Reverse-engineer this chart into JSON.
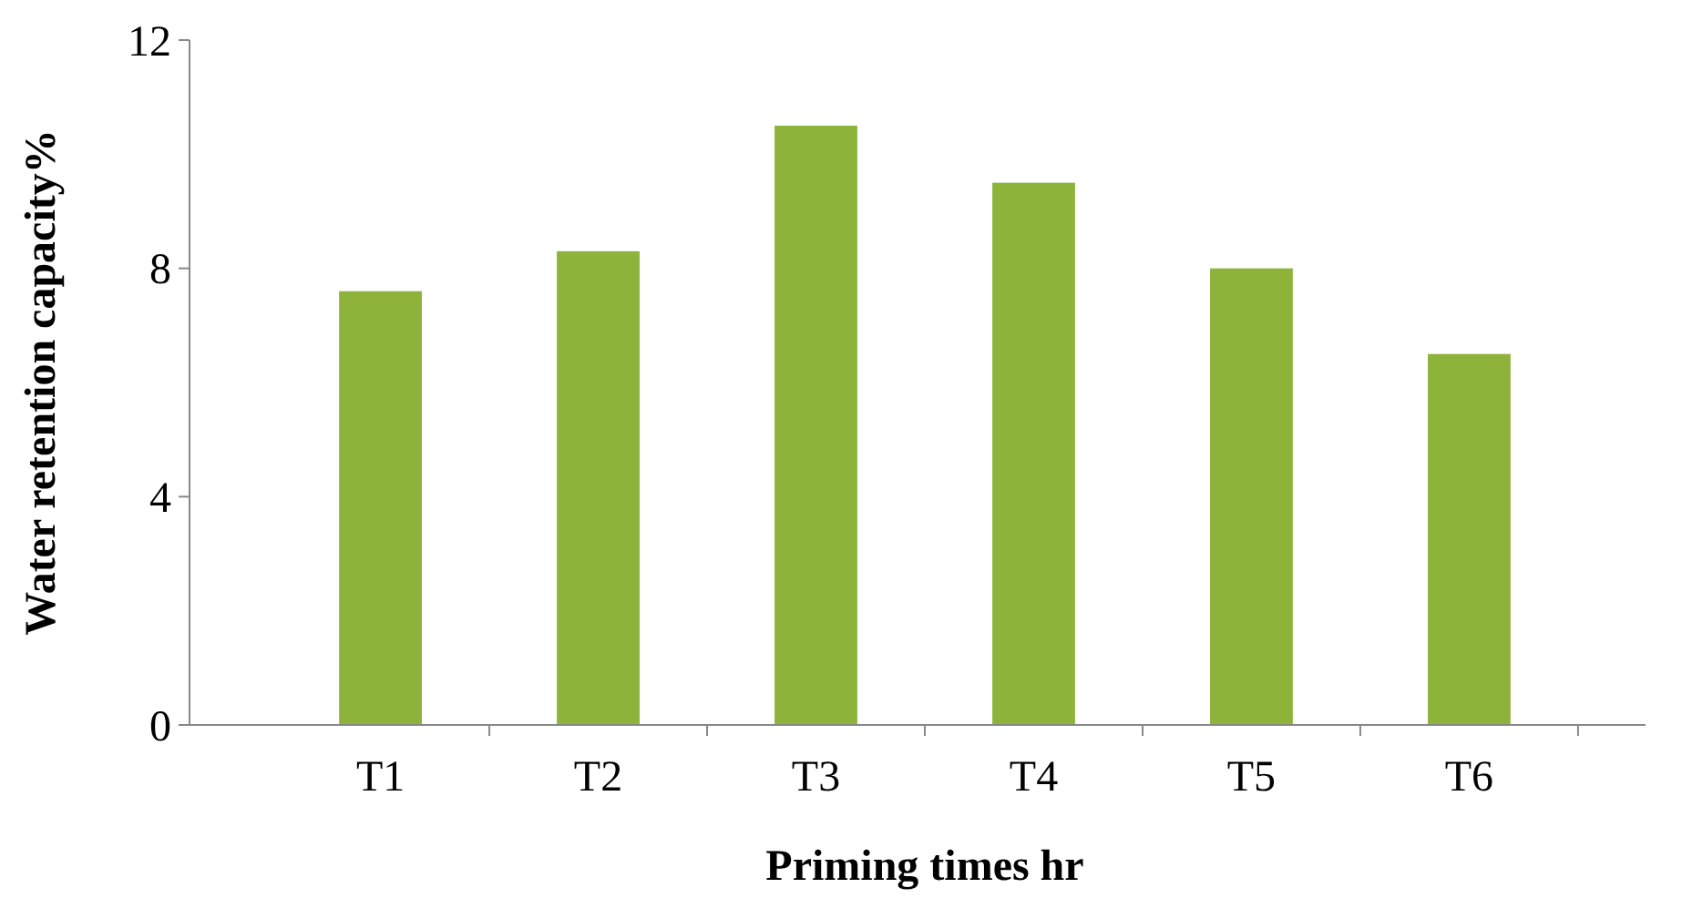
{
  "chart_data": {
    "type": "bar",
    "xlabel": "Priming times hr",
    "ylabel": "Water retention capacity%",
    "categories": [
      "T1",
      "T2",
      "T3",
      "T4",
      "T5",
      "T6"
    ],
    "values": [
      7.6,
      8.3,
      10.5,
      9.5,
      8.0,
      6.5
    ],
    "color": "#8db33a",
    "ylim": [
      0,
      12
    ],
    "yticks": [
      0,
      4,
      8,
      12
    ],
    "grid": false
  }
}
